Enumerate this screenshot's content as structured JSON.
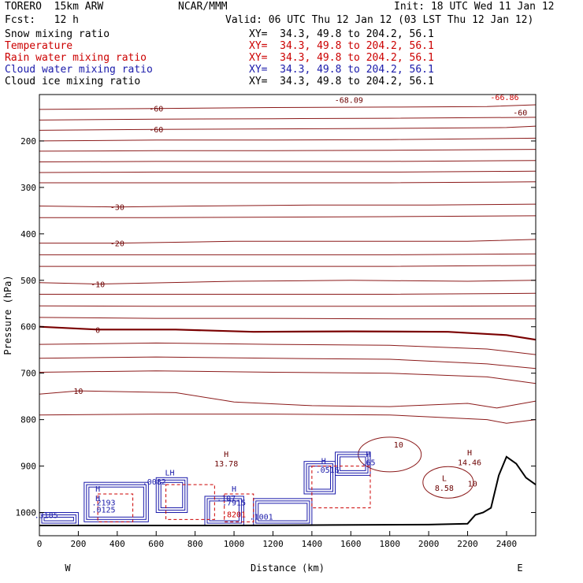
{
  "header": {
    "model": "TORERO  15km ARW",
    "org": "NCAR/MMM",
    "init": "Init: 18 UTC Wed 11 Jan 12",
    "fcst": "Fcst:   12 h",
    "valid": "Valid: 06 UTC Thu 12 Jan 12 (03 LST Thu 12 Jan 12)"
  },
  "fields": [
    {
      "name": "Snow mixing ratio",
      "xy": "XY=  34.3, 49.8 to 204.2, 56.1",
      "color": "#000000"
    },
    {
      "name": "Temperature",
      "xy": "XY=  34.3, 49.8 to 204.2, 56.1",
      "color": "#cc0000"
    },
    {
      "name": "Rain water mixing ratio",
      "xy": "XY=  34.3, 49.8 to 204.2, 56.1",
      "color": "#cc0000"
    },
    {
      "name": "Cloud water mixing ratio",
      "xy": "XY=  34.3, 49.8 to 204.2, 56.1",
      "color": "#1a1aaa"
    },
    {
      "name": "Cloud ice mixing ratio",
      "xy": "XY=  34.3, 49.8 to 204.2, 56.1",
      "color": "#000000"
    }
  ],
  "chart_data": {
    "type": "line",
    "xlabel": "Distance (km)",
    "ylabel": "Pressure (hPa)",
    "xlim": [
      0,
      2550
    ],
    "ylim": [
      1050,
      100
    ],
    "x_ticks": [
      0,
      200,
      400,
      600,
      800,
      1000,
      1200,
      1400,
      1600,
      1800,
      2000,
      2200,
      2400
    ],
    "y_ticks": [
      200,
      300,
      400,
      500,
      600,
      700,
      800,
      900,
      1000
    ],
    "x_end_labels": {
      "left": "W",
      "right": "E"
    },
    "temperature_series": [
      {
        "name": "-60",
        "values": [
          [
            0,
            132
          ],
          [
            600,
            130
          ],
          [
            1200,
            128
          ],
          [
            1800,
            127
          ],
          [
            2300,
            126
          ],
          [
            2550,
            122
          ]
        ]
      },
      {
        "name": "",
        "values": [
          [
            0,
            155
          ],
          [
            600,
            153
          ],
          [
            1200,
            152
          ],
          [
            1800,
            151
          ],
          [
            2550,
            149
          ]
        ]
      },
      {
        "name": "-60",
        "values": [
          [
            0,
            177
          ],
          [
            600,
            175
          ],
          [
            1200,
            174
          ],
          [
            1800,
            173
          ],
          [
            2400,
            171
          ],
          [
            2550,
            168
          ]
        ]
      },
      {
        "name": "",
        "values": [
          [
            0,
            200
          ],
          [
            600,
            198
          ],
          [
            1200,
            198
          ],
          [
            1800,
            197
          ],
          [
            2550,
            194
          ]
        ]
      },
      {
        "name": "",
        "values": [
          [
            0,
            222
          ],
          [
            600,
            221
          ],
          [
            1200,
            221
          ],
          [
            1800,
            220
          ],
          [
            2550,
            218
          ]
        ]
      },
      {
        "name": "",
        "values": [
          [
            0,
            245
          ],
          [
            600,
            244
          ],
          [
            1200,
            244
          ],
          [
            1800,
            244
          ],
          [
            2550,
            242
          ]
        ]
      },
      {
        "name": "",
        "values": [
          [
            0,
            268
          ],
          [
            600,
            267
          ],
          [
            1200,
            267
          ],
          [
            1800,
            267
          ],
          [
            2550,
            265
          ]
        ]
      },
      {
        "name": "",
        "values": [
          [
            0,
            290
          ],
          [
            600,
            290
          ],
          [
            1200,
            290
          ],
          [
            1800,
            290
          ],
          [
            2550,
            288
          ]
        ]
      },
      {
        "name": "-30",
        "values": [
          [
            0,
            340
          ],
          [
            400,
            342
          ],
          [
            800,
            340
          ],
          [
            1400,
            338
          ],
          [
            2000,
            338
          ],
          [
            2550,
            336
          ]
        ]
      },
      {
        "name": "",
        "values": [
          [
            0,
            365
          ],
          [
            600,
            365
          ],
          [
            1200,
            364
          ],
          [
            1800,
            363
          ],
          [
            2550,
            361
          ]
        ]
      },
      {
        "name": "-20",
        "values": [
          [
            0,
            420
          ],
          [
            400,
            420
          ],
          [
            1000,
            416
          ],
          [
            1600,
            416
          ],
          [
            2200,
            416
          ],
          [
            2550,
            412
          ]
        ]
      },
      {
        "name": "",
        "values": [
          [
            0,
            445
          ],
          [
            600,
            445
          ],
          [
            1200,
            445
          ],
          [
            1800,
            445
          ],
          [
            2550,
            443
          ]
        ]
      },
      {
        "name": "",
        "values": [
          [
            0,
            470
          ],
          [
            600,
            470
          ],
          [
            1200,
            470
          ],
          [
            1800,
            470
          ],
          [
            2550,
            468
          ]
        ]
      },
      {
        "name": "-10",
        "values": [
          [
            0,
            505
          ],
          [
            300,
            508
          ],
          [
            1000,
            502
          ],
          [
            1600,
            500
          ],
          [
            2200,
            502
          ],
          [
            2550,
            500
          ]
        ]
      },
      {
        "name": "",
        "values": [
          [
            0,
            530
          ],
          [
            600,
            530
          ],
          [
            1200,
            530
          ],
          [
            1800,
            530
          ],
          [
            2550,
            528
          ]
        ]
      },
      {
        "name": "",
        "values": [
          [
            0,
            555
          ],
          [
            600,
            556
          ],
          [
            1200,
            556
          ],
          [
            1800,
            556
          ],
          [
            2550,
            555
          ]
        ]
      },
      {
        "name": "",
        "values": [
          [
            0,
            580
          ],
          [
            600,
            582
          ],
          [
            1200,
            582
          ],
          [
            1800,
            583
          ],
          [
            2550,
            583
          ]
        ]
      },
      {
        "name": "0",
        "bold": true,
        "values": [
          [
            0,
            600
          ],
          [
            300,
            606
          ],
          [
            700,
            606
          ],
          [
            1100,
            611
          ],
          [
            1600,
            610
          ],
          [
            2100,
            611
          ],
          [
            2400,
            618
          ],
          [
            2550,
            628
          ]
        ]
      },
      {
        "name": "",
        "values": [
          [
            0,
            638
          ],
          [
            600,
            635
          ],
          [
            1200,
            638
          ],
          [
            1800,
            640
          ],
          [
            2300,
            648
          ],
          [
            2550,
            660
          ]
        ]
      },
      {
        "name": "",
        "values": [
          [
            0,
            668
          ],
          [
            600,
            665
          ],
          [
            1200,
            668
          ],
          [
            1800,
            670
          ],
          [
            2300,
            680
          ],
          [
            2550,
            690
          ]
        ]
      },
      {
        "name": "",
        "values": [
          [
            0,
            698
          ],
          [
            600,
            695
          ],
          [
            1200,
            698
          ],
          [
            1800,
            700
          ],
          [
            2300,
            708
          ],
          [
            2550,
            722
          ]
        ]
      },
      {
        "name": "10",
        "values": [
          [
            0,
            745
          ],
          [
            200,
            738
          ],
          [
            700,
            742
          ],
          [
            1000,
            762
          ],
          [
            1400,
            770
          ],
          [
            1800,
            772
          ],
          [
            2200,
            765
          ],
          [
            2350,
            775
          ],
          [
            2550,
            760
          ]
        ]
      },
      {
        "name": "",
        "values": [
          [
            0,
            790
          ],
          [
            600,
            788
          ],
          [
            1200,
            788
          ],
          [
            1800,
            790
          ],
          [
            2300,
            800
          ],
          [
            2400,
            808
          ],
          [
            2550,
            800
          ]
        ]
      }
    ],
    "terrain": [
      [
        0,
        1028
      ],
      [
        1000,
        1028
      ],
      [
        1500,
        1027
      ],
      [
        2000,
        1026
      ],
      [
        2200,
        1024
      ],
      [
        2240,
        1005
      ],
      [
        2280,
        1000
      ],
      [
        2320,
        990
      ],
      [
        2360,
        920
      ],
      [
        2400,
        880
      ],
      [
        2450,
        895
      ],
      [
        2500,
        925
      ],
      [
        2550,
        940
      ]
    ],
    "annotations": [
      {
        "text": "-66.86",
        "x": 2390,
        "y": 112,
        "color": "#cc0000"
      },
      {
        "text": "-60",
        "x": 2470,
        "y": 145,
        "color": "#6b0000"
      },
      {
        "text": "-68.09",
        "x": 1590,
        "y": 118,
        "color": "#6b0000"
      },
      {
        "text": "H",
        "x": 960,
        "y": 880,
        "color": "#6b0000"
      },
      {
        "text": "13.78",
        "x": 960,
        "y": 901,
        "color": "#6b0000"
      },
      {
        "text": "H",
        "x": 2210,
        "y": 877,
        "color": "#6b0000"
      },
      {
        "text": "14.46",
        "x": 2210,
        "y": 898,
        "color": "#6b0000"
      },
      {
        "text": "L",
        "x": 2080,
        "y": 932,
        "color": "#6b0000"
      },
      {
        "text": "8.58",
        "x": 2080,
        "y": 953,
        "color": "#6b0000"
      },
      {
        "text": "10",
        "x": 2225,
        "y": 944,
        "color": "#6b0000"
      },
      {
        "text": "10",
        "x": 1845,
        "y": 860,
        "color": "#6b0000"
      },
      {
        "text": "LH",
        "x": 670,
        "y": 920,
        "color": "#1a1aaa"
      },
      {
        "text": ".0082",
        "x": 590,
        "y": 940,
        "color": "#1a1aaa"
      },
      {
        "text": "H",
        "x": 300,
        "y": 955,
        "color": "#1a1aaa"
      },
      {
        "text": "H",
        "x": 300,
        "y": 975,
        "color": "#1a1aaa"
      },
      {
        "text": ".2193",
        "x": 330,
        "y": 985,
        "color": "#1a1aaa"
      },
      {
        "text": ".0125",
        "x": 330,
        "y": 1000,
        "color": "#1a1aaa"
      },
      {
        "text": "H",
        "x": 1000,
        "y": 955,
        "color": "#1a1aaa"
      },
      {
        "text": ".107",
        "x": 960,
        "y": 975,
        "color": "#1a1aaa"
      },
      {
        "text": ".7915",
        "x": 1000,
        "y": 985,
        "color": "#1a1aaa"
      },
      {
        "text": ".1001",
        "x": 1140,
        "y": 1015,
        "color": "#1a1aaa"
      },
      {
        "text": ".8201",
        "x": 1000,
        "y": 1010,
        "color": "#cc0000"
      },
      {
        "text": ".3185",
        "x": 35,
        "y": 1012,
        "color": "#1a1aaa"
      },
      {
        "text": "H",
        "x": 1460,
        "y": 895,
        "color": "#1a1aaa"
      },
      {
        "text": ".0516",
        "x": 1480,
        "y": 914,
        "color": "#1a1aaa"
      },
      {
        "text": "H",
        "x": 1690,
        "y": 880,
        "color": "#1a1aaa"
      },
      {
        "text": ".65",
        "x": 1690,
        "y": 898,
        "color": "#1a1aaa"
      }
    ]
  }
}
